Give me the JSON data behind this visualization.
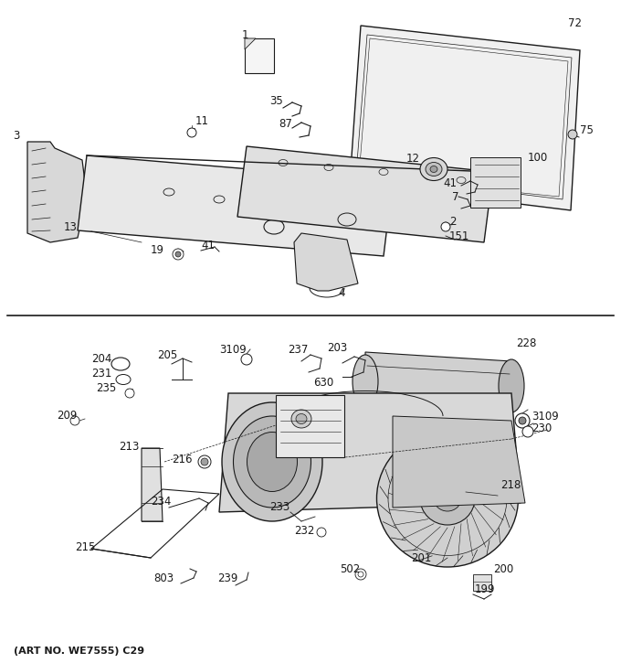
{
  "footer": "(ART NO. WE7555) C29",
  "bg_color": "#ffffff",
  "line_color": "#1a1a1a",
  "fig_w": 6.8,
  "fig_h": 7.25,
  "dpi": 100
}
